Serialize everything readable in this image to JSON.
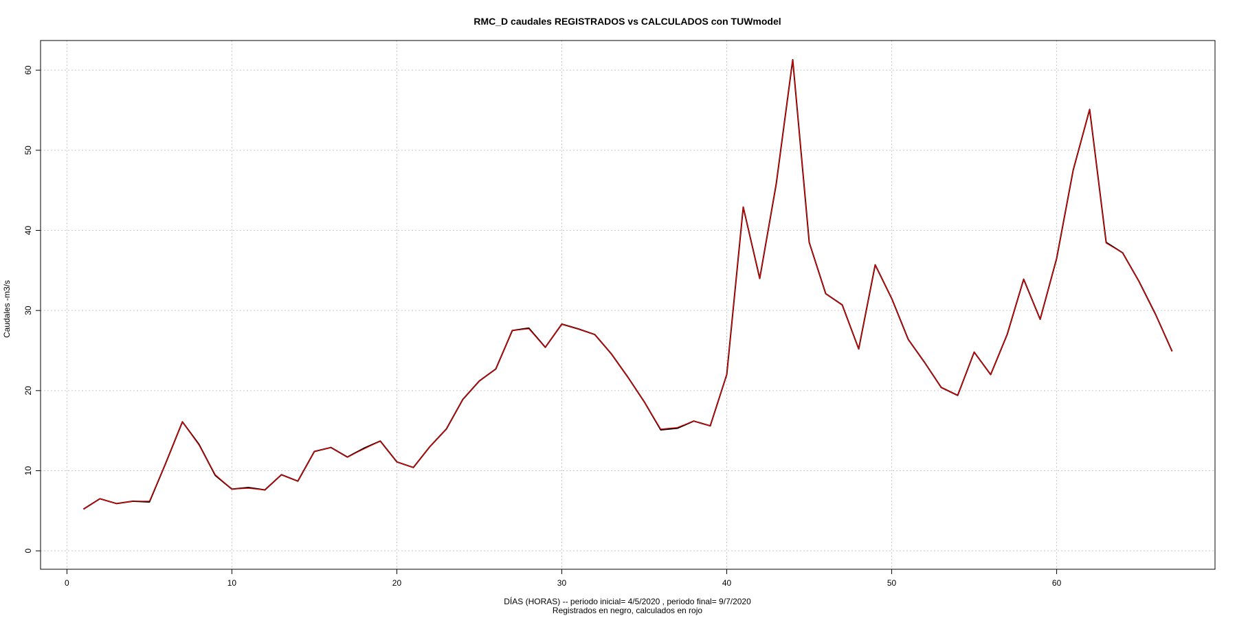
{
  "chart_data": {
    "type": "line",
    "title": "RMC_D caudales REGISTRADOS vs CALCULADOS con TUWmodel",
    "xlabel": "DÍAS (HORAS) --  periodo inicial= 4/5/2020 ,  periodo final= 9/7/2020",
    "xlabel_line2": "Registrados en negro, calculados en rojo",
    "ylabel": "Caudales -m3/s",
    "xlim": [
      -1.6,
      69.6
    ],
    "ylim": [
      -2.3,
      63.7
    ],
    "xticks": [
      0,
      10,
      20,
      30,
      40,
      50,
      60
    ],
    "yticks": [
      0,
      10,
      20,
      30,
      40,
      50,
      60
    ],
    "grid": true,
    "x": [
      1,
      2,
      3,
      4,
      5,
      6,
      7,
      8,
      9,
      10,
      11,
      12,
      13,
      14,
      15,
      16,
      17,
      18,
      19,
      20,
      21,
      22,
      23,
      24,
      25,
      26,
      27,
      28,
      29,
      30,
      31,
      32,
      33,
      34,
      35,
      36,
      37,
      38,
      39,
      40,
      41,
      42,
      43,
      44,
      45,
      46,
      47,
      48,
      49,
      50,
      51,
      52,
      53,
      54,
      55,
      56,
      57,
      58,
      59,
      60,
      61,
      62,
      63,
      64,
      65,
      66,
      67
    ],
    "series": [
      {
        "color": "#000000",
        "values": [
          5.2,
          6.5,
          5.9,
          6.2,
          6.1,
          11.0,
          16.1,
          13.3,
          9.4,
          7.7,
          7.9,
          7.6,
          9.5,
          8.7,
          12.4,
          12.9,
          11.7,
          12.8,
          13.7,
          11.1,
          10.4,
          13.0,
          15.2,
          18.9,
          21.2,
          22.7,
          27.5,
          27.8,
          25.4,
          28.3,
          27.7,
          27.0,
          24.6,
          21.7,
          18.6,
          15.1,
          15.3,
          16.2,
          15.6,
          22.0,
          42.9,
          34.0,
          45.8,
          61.3,
          38.5,
          32.1,
          30.7,
          25.2,
          35.7,
          31.5,
          26.4,
          23.5,
          20.4,
          19.4,
          24.8,
          22.0,
          27.0,
          33.9,
          28.9,
          36.5,
          47.5,
          55.1,
          38.5,
          37.2,
          33.6,
          29.5,
          24.9
        ]
      },
      {
        "color": "#ff0000",
        "values": [
          5.2,
          6.5,
          5.9,
          6.2,
          6.2,
          11.0,
          16.1,
          13.2,
          9.5,
          7.7,
          7.8,
          7.6,
          9.5,
          8.7,
          12.4,
          12.9,
          11.7,
          12.7,
          13.7,
          11.1,
          10.4,
          13.0,
          15.2,
          18.9,
          21.2,
          22.7,
          27.5,
          27.7,
          25.4,
          28.3,
          27.7,
          27.0,
          24.6,
          21.7,
          18.6,
          15.2,
          15.4,
          16.2,
          15.6,
          22.0,
          42.9,
          34.0,
          45.8,
          61.3,
          38.5,
          32.1,
          30.7,
          25.2,
          35.7,
          31.5,
          26.4,
          23.5,
          20.4,
          19.4,
          24.8,
          22.0,
          27.0,
          33.9,
          28.9,
          36.5,
          47.5,
          55.1,
          38.4,
          37.2,
          33.6,
          29.5,
          24.9
        ]
      }
    ]
  }
}
